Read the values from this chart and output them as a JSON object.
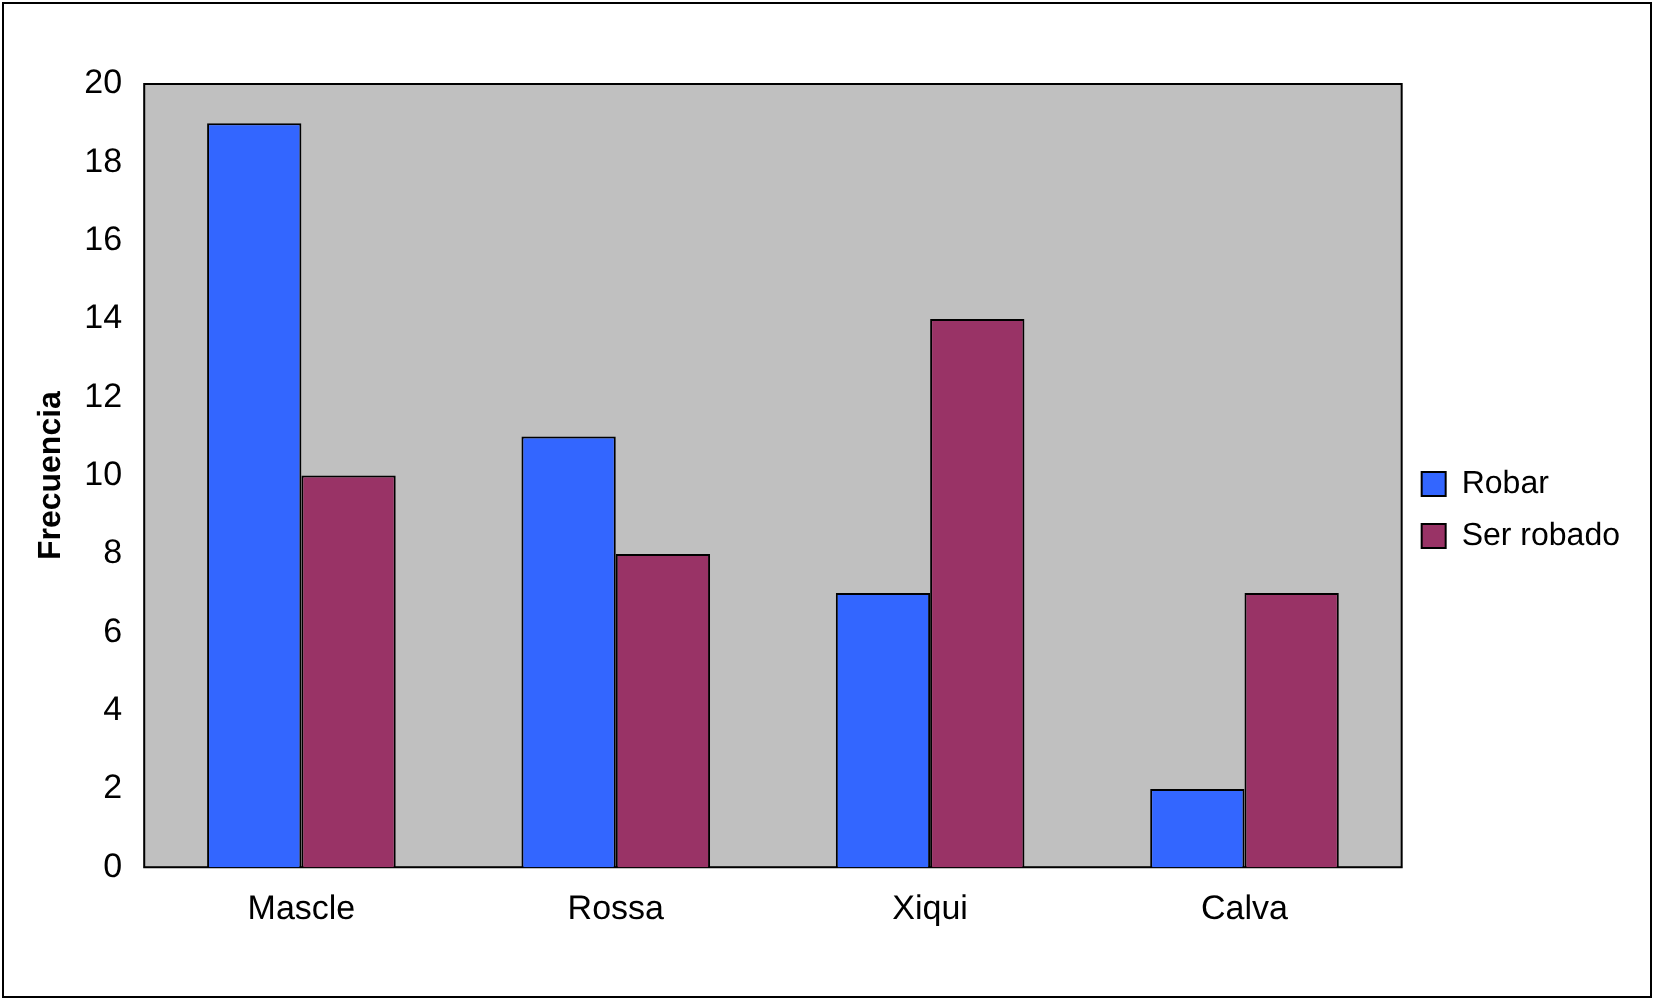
{
  "chart_data": {
    "type": "bar",
    "ylabel": "Frecuencia",
    "categories": [
      "Mascle",
      "Rossa",
      "Xiqui",
      "Calva"
    ],
    "series": [
      {
        "name": "Robar",
        "color": "#3366ff",
        "values": [
          19,
          11,
          7,
          2
        ]
      },
      {
        "name": "Ser robado",
        "color": "#993366",
        "values": [
          10,
          8,
          14,
          7
        ]
      }
    ],
    "ylim": [
      0,
      20
    ],
    "yticks": [
      0,
      2,
      4,
      6,
      8,
      10,
      12,
      14,
      16,
      18,
      20
    ],
    "grid": false,
    "legend": "right"
  }
}
